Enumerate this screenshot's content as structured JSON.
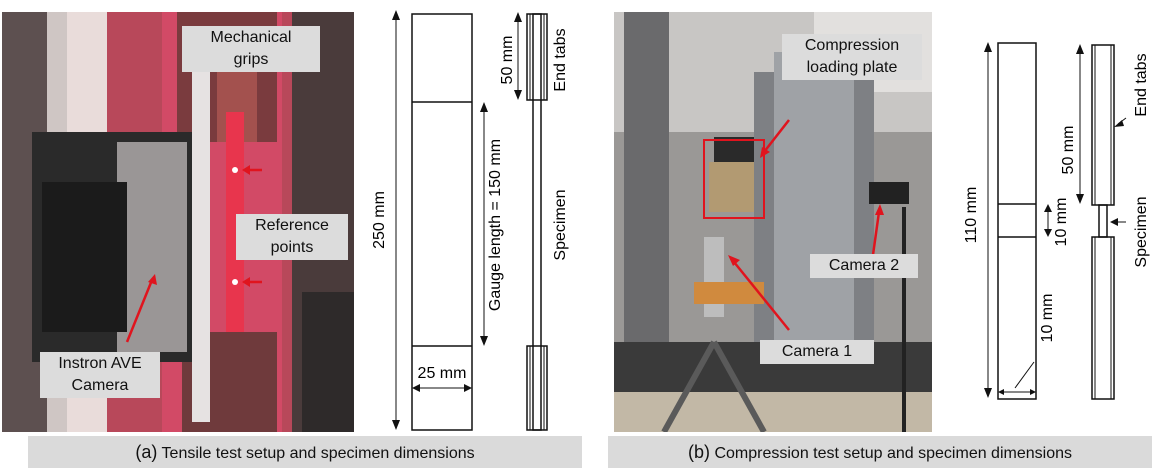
{
  "panel_a": {
    "labels": {
      "grips_line1": "Mechanical",
      "grips_line2": "grips",
      "ref_line1": "Reference",
      "ref_line2": "points",
      "cam_line1": "Instron AVE",
      "cam_line2": "Camera"
    },
    "dims": {
      "total": "250 mm",
      "tabs": "50 mm",
      "end_tabs": "End tabs",
      "gauge": "Gauge length = 150 mm",
      "specimen": "Specimen",
      "width": "25 mm"
    },
    "caption_letter": "(a)",
    "caption_text": "Tensile test setup and specimen dimensions"
  },
  "panel_b": {
    "labels": {
      "plate_line1": "Compression",
      "plate_line2": "loading plate",
      "camera2": "Camera 2",
      "camera1": "Camera 1"
    },
    "dims": {
      "total": "110 mm",
      "tabs": "50 mm",
      "end_tabs": "End tabs",
      "gauge": "10 mm",
      "specimen": "Specimen",
      "width": "10 mm"
    },
    "caption_letter": "(b)",
    "caption_text": "Compression test setup and specimen dimensions"
  },
  "colors": {
    "arrow": "#e0141e",
    "label_bg": "#dcdcdc",
    "caption_bg": "#dadada"
  }
}
